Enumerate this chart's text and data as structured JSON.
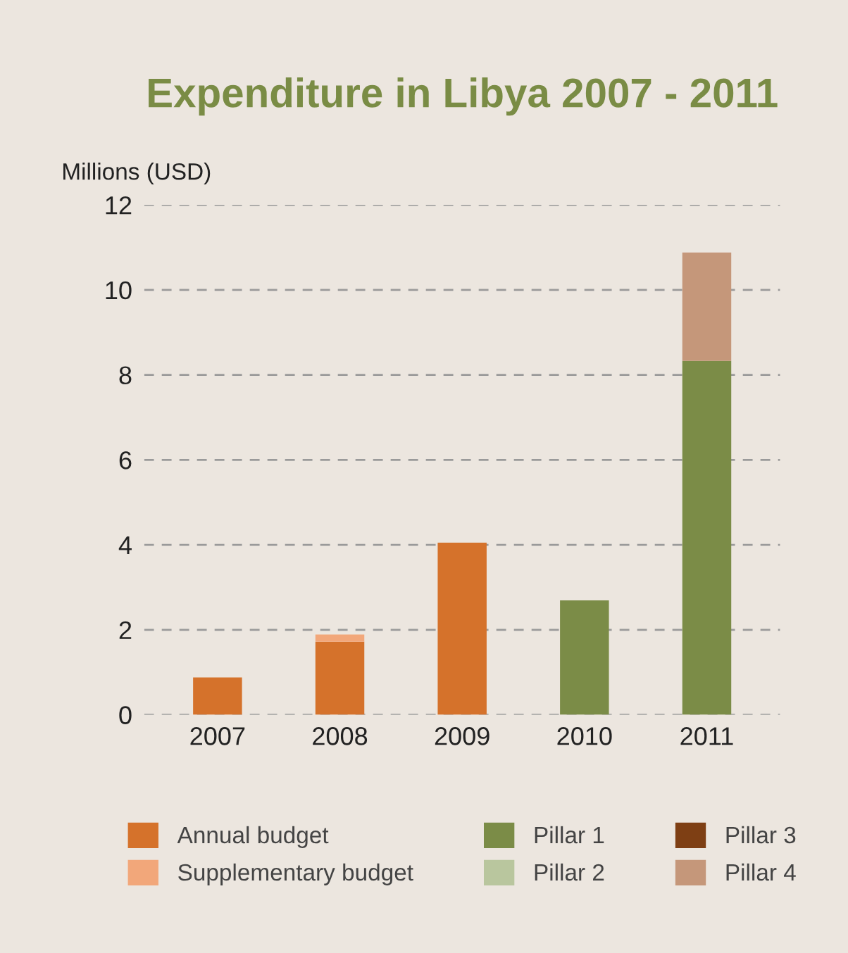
{
  "chart_data": {
    "type": "bar",
    "title": "Expenditure in Libya 2007 - 2011",
    "ylabel": "Millions (USD)",
    "categories": [
      "2007",
      "2008",
      "2009",
      "2010",
      "2011"
    ],
    "stacked": true,
    "series": [
      {
        "name": "Annual budget",
        "color": "#d5722b",
        "values": [
          0.88,
          1.72,
          4.05,
          null,
          null
        ]
      },
      {
        "name": "Supplementary budget",
        "color": "#f2a77a",
        "values": [
          null,
          0.17,
          null,
          null,
          null
        ]
      },
      {
        "name": "Pillar 1",
        "color": "#7b8c47",
        "values": [
          null,
          null,
          null,
          2.69,
          8.33
        ]
      },
      {
        "name": "Pillar 2",
        "color": "#b9c69e",
        "values": [
          null,
          null,
          null,
          null,
          null
        ]
      },
      {
        "name": "Pillar 3",
        "color": "#7e3f14",
        "values": [
          null,
          null,
          null,
          null,
          null
        ]
      },
      {
        "name": "Pillar 4",
        "color": "#c5977a",
        "values": [
          null,
          null,
          null,
          null,
          2.55
        ]
      }
    ],
    "ylim": [
      0,
      12
    ],
    "yticks": [
      0,
      2,
      4,
      6,
      8,
      10,
      12
    ],
    "grid": "y",
    "legend": "bottom"
  }
}
